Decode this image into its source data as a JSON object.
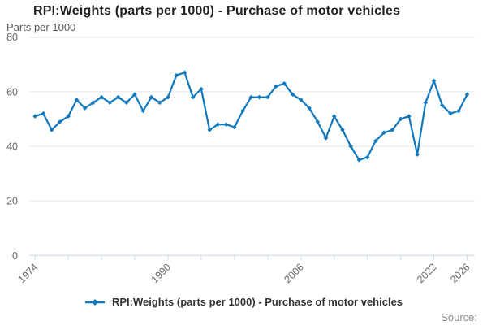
{
  "header": {
    "title": "RPI:Weights (parts per 1000) - Purchase of motor vehicles"
  },
  "footer": {
    "source_label": "Source:"
  },
  "legend": {
    "series_label": "RPI:Weights (parts per 1000) - Purchase of motor vehicles"
  },
  "chart_data": {
    "type": "line",
    "title": "RPI:Weights (parts per 1000) - Purchase of motor vehicles",
    "y_axis_title": "Parts per 1000",
    "xlabel": "",
    "ylabel": "Parts per 1000",
    "ylim": [
      0,
      80
    ],
    "y_ticks": [
      0,
      20,
      40,
      60,
      80
    ],
    "x_ticks_every_years": 4,
    "x_tick_years": [
      1974,
      1978,
      1982,
      1986,
      1990,
      1994,
      1998,
      2002,
      2006,
      2010,
      2014,
      2018,
      2022,
      2026
    ],
    "x_labeled_ticks": [
      "1974",
      "1990",
      "2006",
      "2022",
      "2026"
    ],
    "grid": "horizontal",
    "legend_position": "bottom",
    "colors": {
      "line": "#1178be",
      "gridline": "#e6e6e6",
      "axis": "#ccd6eb",
      "tick_label": "#666666"
    },
    "series": [
      {
        "name": "RPI:Weights (parts per 1000) - Purchase of motor vehicles",
        "color": "#1178be",
        "x": [
          1974,
          1975,
          1976,
          1977,
          1978,
          1979,
          1980,
          1981,
          1982,
          1983,
          1984,
          1985,
          1986,
          1987,
          1988,
          1989,
          1990,
          1991,
          1992,
          1993,
          1994,
          1995,
          1996,
          1997,
          1998,
          1999,
          2000,
          2001,
          2002,
          2003,
          2004,
          2005,
          2006,
          2007,
          2008,
          2009,
          2010,
          2011,
          2012,
          2013,
          2014,
          2015,
          2016,
          2017,
          2018,
          2019,
          2020,
          2021,
          2022,
          2023,
          2024,
          2025,
          2026
        ],
        "values": [
          51,
          52,
          46,
          49,
          51,
          57,
          54,
          56,
          58,
          56,
          58,
          56,
          59,
          53,
          58,
          56,
          58,
          66,
          67,
          58,
          61,
          46,
          48,
          48,
          47,
          53,
          58,
          58,
          58,
          62,
          63,
          59,
          57,
          54,
          49,
          43,
          51,
          46,
          40,
          35,
          36,
          42,
          45,
          46,
          50,
          51,
          37,
          56,
          64,
          55,
          52,
          53,
          59
        ]
      }
    ]
  }
}
